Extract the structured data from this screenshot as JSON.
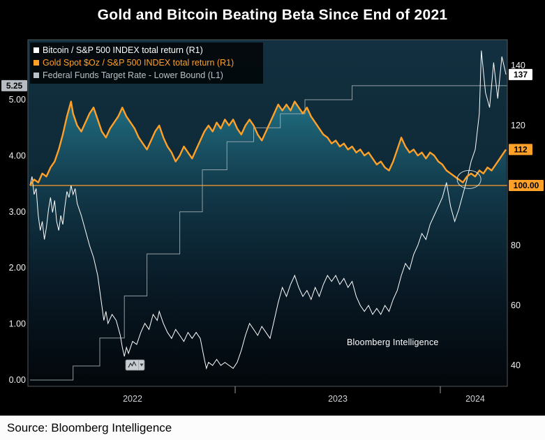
{
  "window": {
    "title": "Gold and Bitcoin Beating Beta Since End of 2021",
    "source_line": "Source: Bloomberg Intelligence"
  },
  "watermark": "Bloomberg Intelligence",
  "colors": {
    "bitcoin": "#ffffff",
    "gold": "#ffa028",
    "fed": "#aab4ba",
    "badge_text": "#000000",
    "left_badge_bg": "#b6bcc1",
    "plot_frame": "#53585c"
  },
  "legend": {
    "items": [
      {
        "label": "Bitcoin / S&P 500 INDEX total return (R1)",
        "color": "#ffffff"
      },
      {
        "label": "Gold Spot $Oz / S&P 500 INDEX total return (R1)",
        "color": "#ffa028"
      },
      {
        "label": "Federal Funds Target Rate - Lower Bound  (L1)",
        "color": "#b9c2c8"
      }
    ]
  },
  "controls": {
    "chart_type_button": {
      "icons": [
        "line-chart-icon",
        "caret-down-icon"
      ]
    }
  },
  "chart_data": {
    "type": "line",
    "title": "Gold and Bitcoin Beating Beta Since End of 2021",
    "x_unit": "years since 2022-01-01",
    "x_end": 2.327,
    "x_axis": {
      "ticks": [
        {
          "x": 0.5,
          "label": "2022"
        },
        {
          "x": 1.5,
          "label": "2023"
        },
        {
          "x": 2.17,
          "label": "2024"
        }
      ],
      "dividers": [
        1,
        2
      ]
    },
    "left_axis": {
      "range": [
        -0.1,
        6.2
      ],
      "ticks": [
        {
          "v": 5,
          "label": "5.00"
        },
        {
          "v": 4,
          "label": "4.00"
        },
        {
          "v": 3,
          "label": "3.00"
        },
        {
          "v": 2,
          "label": "2.00"
        },
        {
          "v": 1,
          "label": "1.00"
        },
        {
          "v": 0,
          "label": "0.00"
        }
      ],
      "last_value_badge": {
        "v": 5.25,
        "label": "5.25",
        "bg": "#b6bcc1",
        "fg": "#000000",
        "series": "fed"
      }
    },
    "right_axis": {
      "range": [
        33.5,
        148.5
      ],
      "ticks": [
        {
          "v": 140,
          "label": "140"
        },
        {
          "v": 120,
          "label": "120"
        },
        {
          "v": 100,
          "label": "100.00",
          "badge": {
            "bg": "#ffa028",
            "fg": "#000000"
          }
        },
        {
          "v": 80,
          "label": "80"
        },
        {
          "v": 60,
          "label": "60"
        },
        {
          "v": 40,
          "label": "40"
        }
      ],
      "last_value_badges": [
        {
          "v": 137,
          "label": "137",
          "bg": "#ffffff",
          "fg": "#000000",
          "series": "bitcoin"
        },
        {
          "v": 112,
          "label": "112",
          "bg": "#ffa028",
          "fg": "#000000",
          "series": "gold"
        }
      ]
    },
    "reference_line": {
      "axis": "R1",
      "value": 100,
      "color": "#ffa028"
    },
    "annotation": {
      "shape": "ellipse",
      "x": 2.14,
      "value": 102
    },
    "series": [
      {
        "name": "Bitcoin / S&P 500 INDEX total return",
        "axis": "R1",
        "color": "#ffffff",
        "points": [
          [
            0,
            100
          ],
          [
            0.01,
            103
          ],
          [
            0.02,
            97
          ],
          [
            0.03,
            99
          ],
          [
            0.04,
            90
          ],
          [
            0.05,
            85
          ],
          [
            0.06,
            88
          ],
          [
            0.07,
            82
          ],
          [
            0.08,
            86
          ],
          [
            0.09,
            92
          ],
          [
            0.1,
            96
          ],
          [
            0.11,
            91
          ],
          [
            0.12,
            95
          ],
          [
            0.13,
            88
          ],
          [
            0.14,
            85
          ],
          [
            0.15,
            90
          ],
          [
            0.16,
            87
          ],
          [
            0.17,
            93
          ],
          [
            0.18,
            98
          ],
          [
            0.19,
            96
          ],
          [
            0.2,
            100
          ],
          [
            0.21,
            97
          ],
          [
            0.22,
            99
          ],
          [
            0.23,
            94
          ],
          [
            0.25,
            90
          ],
          [
            0.27,
            85
          ],
          [
            0.29,
            80
          ],
          [
            0.31,
            76
          ],
          [
            0.33,
            70
          ],
          [
            0.35,
            60
          ],
          [
            0.36,
            55
          ],
          [
            0.37,
            58
          ],
          [
            0.38,
            54
          ],
          [
            0.4,
            57
          ],
          [
            0.42,
            55
          ],
          [
            0.44,
            50
          ],
          [
            0.45,
            46
          ],
          [
            0.46,
            43
          ],
          [
            0.47,
            46
          ],
          [
            0.48,
            44
          ],
          [
            0.5,
            48
          ],
          [
            0.52,
            47
          ],
          [
            0.54,
            51
          ],
          [
            0.56,
            54
          ],
          [
            0.58,
            52
          ],
          [
            0.6,
            57
          ],
          [
            0.62,
            55
          ],
          [
            0.63,
            58
          ],
          [
            0.65,
            54
          ],
          [
            0.67,
            51
          ],
          [
            0.69,
            49
          ],
          [
            0.71,
            52
          ],
          [
            0.73,
            50
          ],
          [
            0.75,
            48
          ],
          [
            0.77,
            51
          ],
          [
            0.79,
            49
          ],
          [
            0.81,
            51
          ],
          [
            0.83,
            49
          ],
          [
            0.85,
            42
          ],
          [
            0.86,
            39
          ],
          [
            0.87,
            41
          ],
          [
            0.89,
            40
          ],
          [
            0.91,
            42
          ],
          [
            0.93,
            40
          ],
          [
            0.95,
            41
          ],
          [
            0.97,
            40
          ],
          [
            0.99,
            39
          ],
          [
            1.01,
            41
          ],
          [
            1.03,
            45
          ],
          [
            1.05,
            50
          ],
          [
            1.07,
            54
          ],
          [
            1.09,
            52
          ],
          [
            1.11,
            50
          ],
          [
            1.13,
            53
          ],
          [
            1.15,
            51
          ],
          [
            1.17,
            49
          ],
          [
            1.19,
            55
          ],
          [
            1.21,
            61
          ],
          [
            1.23,
            66
          ],
          [
            1.25,
            63
          ],
          [
            1.27,
            67
          ],
          [
            1.29,
            70
          ],
          [
            1.31,
            66
          ],
          [
            1.33,
            63
          ],
          [
            1.35,
            65
          ],
          [
            1.37,
            62
          ],
          [
            1.39,
            66
          ],
          [
            1.41,
            63
          ],
          [
            1.43,
            67
          ],
          [
            1.45,
            70
          ],
          [
            1.47,
            68
          ],
          [
            1.49,
            70
          ],
          [
            1.51,
            67
          ],
          [
            1.53,
            69
          ],
          [
            1.55,
            66
          ],
          [
            1.57,
            68
          ],
          [
            1.59,
            63
          ],
          [
            1.61,
            60
          ],
          [
            1.63,
            58
          ],
          [
            1.65,
            60
          ],
          [
            1.67,
            57
          ],
          [
            1.69,
            59
          ],
          [
            1.71,
            57
          ],
          [
            1.73,
            60
          ],
          [
            1.75,
            58
          ],
          [
            1.77,
            62
          ],
          [
            1.79,
            65
          ],
          [
            1.81,
            70
          ],
          [
            1.83,
            74
          ],
          [
            1.85,
            72
          ],
          [
            1.87,
            77
          ],
          [
            1.89,
            80
          ],
          [
            1.91,
            84
          ],
          [
            1.93,
            82
          ],
          [
            1.95,
            87
          ],
          [
            1.97,
            90
          ],
          [
            1.99,
            93
          ],
          [
            2.01,
            96
          ],
          [
            2.03,
            101
          ],
          [
            2.05,
            93
          ],
          [
            2.07,
            88
          ],
          [
            2.09,
            92
          ],
          [
            2.11,
            97
          ],
          [
            2.13,
            102
          ],
          [
            2.15,
            108
          ],
          [
            2.17,
            112
          ],
          [
            2.19,
            124
          ],
          [
            2.2,
            145
          ],
          [
            2.22,
            131
          ],
          [
            2.24,
            126
          ],
          [
            2.26,
            141
          ],
          [
            2.28,
            129
          ],
          [
            2.3,
            143
          ],
          [
            2.32,
            137
          ]
        ]
      },
      {
        "name": "Gold Spot $Oz / S&P 500 INDEX total return",
        "axis": "R1",
        "color": "#ffa028",
        "points": [
          [
            0,
            100
          ],
          [
            0.02,
            102
          ],
          [
            0.04,
            101
          ],
          [
            0.06,
            104
          ],
          [
            0.08,
            103
          ],
          [
            0.1,
            106
          ],
          [
            0.12,
            108
          ],
          [
            0.14,
            112
          ],
          [
            0.16,
            117
          ],
          [
            0.18,
            123
          ],
          [
            0.2,
            128
          ],
          [
            0.21,
            124
          ],
          [
            0.23,
            120
          ],
          [
            0.25,
            118
          ],
          [
            0.27,
            121
          ],
          [
            0.29,
            124
          ],
          [
            0.31,
            126
          ],
          [
            0.33,
            122
          ],
          [
            0.35,
            118
          ],
          [
            0.37,
            116
          ],
          [
            0.39,
            119
          ],
          [
            0.41,
            121
          ],
          [
            0.43,
            123
          ],
          [
            0.45,
            126
          ],
          [
            0.47,
            123
          ],
          [
            0.49,
            121
          ],
          [
            0.51,
            119
          ],
          [
            0.53,
            116
          ],
          [
            0.55,
            114
          ],
          [
            0.57,
            112
          ],
          [
            0.59,
            115
          ],
          [
            0.61,
            118
          ],
          [
            0.63,
            120
          ],
          [
            0.65,
            116
          ],
          [
            0.67,
            113
          ],
          [
            0.69,
            111
          ],
          [
            0.71,
            108
          ],
          [
            0.73,
            110
          ],
          [
            0.75,
            113
          ],
          [
            0.77,
            111
          ],
          [
            0.79,
            109
          ],
          [
            0.81,
            112
          ],
          [
            0.83,
            115
          ],
          [
            0.85,
            118
          ],
          [
            0.87,
            120
          ],
          [
            0.89,
            118
          ],
          [
            0.91,
            121
          ],
          [
            0.93,
            119
          ],
          [
            0.95,
            122
          ],
          [
            0.97,
            120
          ],
          [
            0.99,
            122
          ],
          [
            1.01,
            119
          ],
          [
            1.03,
            117
          ],
          [
            1.05,
            120
          ],
          [
            1.07,
            122
          ],
          [
            1.09,
            120
          ],
          [
            1.11,
            117
          ],
          [
            1.13,
            115
          ],
          [
            1.15,
            118
          ],
          [
            1.17,
            121
          ],
          [
            1.19,
            124
          ],
          [
            1.21,
            127
          ],
          [
            1.23,
            125
          ],
          [
            1.25,
            127
          ],
          [
            1.27,
            125
          ],
          [
            1.29,
            128
          ],
          [
            1.31,
            126
          ],
          [
            1.33,
            124
          ],
          [
            1.35,
            126
          ],
          [
            1.37,
            123
          ],
          [
            1.39,
            121
          ],
          [
            1.41,
            119
          ],
          [
            1.43,
            117
          ],
          [
            1.45,
            116
          ],
          [
            1.47,
            114
          ],
          [
            1.49,
            115
          ],
          [
            1.51,
            113
          ],
          [
            1.53,
            114
          ],
          [
            1.55,
            112
          ],
          [
            1.57,
            113
          ],
          [
            1.59,
            111
          ],
          [
            1.61,
            112
          ],
          [
            1.63,
            110
          ],
          [
            1.65,
            111
          ],
          [
            1.67,
            109
          ],
          [
            1.69,
            107
          ],
          [
            1.71,
            108
          ],
          [
            1.73,
            106
          ],
          [
            1.75,
            105
          ],
          [
            1.77,
            108
          ],
          [
            1.79,
            112
          ],
          [
            1.81,
            116
          ],
          [
            1.83,
            113
          ],
          [
            1.85,
            111
          ],
          [
            1.87,
            112
          ],
          [
            1.89,
            110
          ],
          [
            1.91,
            111
          ],
          [
            1.93,
            109
          ],
          [
            1.95,
            111
          ],
          [
            1.97,
            110
          ],
          [
            1.99,
            108
          ],
          [
            2.01,
            107
          ],
          [
            2.03,
            105
          ],
          [
            2.05,
            104
          ],
          [
            2.07,
            103
          ],
          [
            2.09,
            102
          ],
          [
            2.11,
            101
          ],
          [
            2.13,
            103
          ],
          [
            2.15,
            104
          ],
          [
            2.17,
            103
          ],
          [
            2.19,
            105
          ],
          [
            2.21,
            104
          ],
          [
            2.23,
            106
          ],
          [
            2.25,
            105
          ],
          [
            2.27,
            107
          ],
          [
            2.29,
            109
          ],
          [
            2.31,
            111
          ],
          [
            2.32,
            112
          ]
        ]
      },
      {
        "name": "Federal Funds Target Rate - Lower Bound",
        "axis": "L1",
        "color": "#aab4ba",
        "style": "step",
        "points": [
          [
            0,
            0
          ],
          [
            0.21,
            0.25
          ],
          [
            0.34,
            0.75
          ],
          [
            0.46,
            1.5
          ],
          [
            0.57,
            2.25
          ],
          [
            0.73,
            3
          ],
          [
            0.84,
            3.75
          ],
          [
            0.96,
            4.25
          ],
          [
            1.09,
            4.5
          ],
          [
            1.22,
            4.75
          ],
          [
            1.34,
            5
          ],
          [
            1.57,
            5.25
          ]
        ]
      }
    ]
  }
}
